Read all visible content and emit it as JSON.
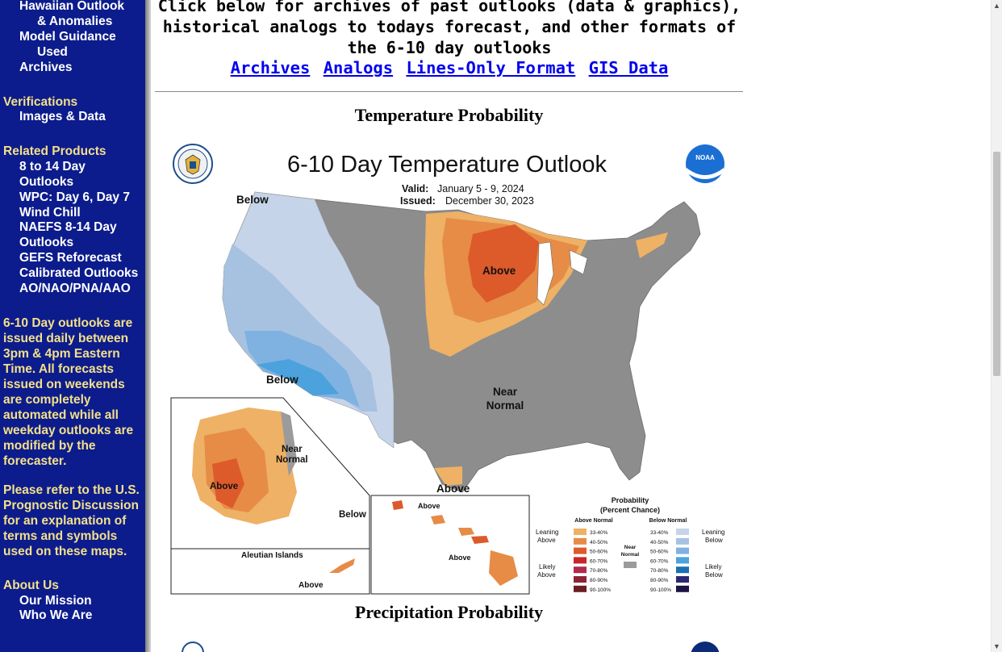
{
  "sidebar": {
    "top_items": [
      {
        "label": "Hawaiian Outlook"
      },
      {
        "label": "& Anomalies"
      },
      {
        "label": "Model Guidance"
      },
      {
        "label": "Used"
      },
      {
        "label": "Archives"
      }
    ],
    "verifications": {
      "heading": "Verifications",
      "items": [
        "Images & Data"
      ]
    },
    "related": {
      "heading": "Related Products",
      "items": [
        "8 to 14 Day",
        "Outlooks",
        "WPC: Day 6, Day 7",
        "Wind Chill",
        "NAEFS 8-14 Day",
        "Outlooks",
        "GEFS Reforecast",
        "Calibrated Outlooks",
        "AO/NAO/PNA/AAO"
      ]
    },
    "note1": "6-10 Day outlooks are issued daily between 3pm & 4pm Eastern Time. All forecasts issued on weekends are completely automated while all weekday outlooks are modified by the forecaster.",
    "note2": "Please refer to the U.S. Prognostic Discussion for an explanation of terms and symbols used on these maps.",
    "about": {
      "heading": "About Us",
      "items": [
        "Our Mission",
        "Who We Are"
      ]
    }
  },
  "header": {
    "line1": "Click below for archives of past outlooks (data & graphics),",
    "line2": "historical analogs to todays forecast, and other formats of",
    "line3": "the 6-10 day outlooks",
    "links": [
      "Archives",
      "Analogs",
      "Lines-Only Format",
      "GIS Data"
    ]
  },
  "sections": {
    "temperature_title": "Temperature Probability",
    "precip_title": "Precipitation Probability"
  },
  "map": {
    "title": "6-10 Day Temperature Outlook",
    "valid_label": "Valid:",
    "valid_value": "January 5 - 9, 2024",
    "issued_label": "Issued:",
    "issued_value": "December 30, 2023",
    "noaa_logo": "NOAA",
    "labels": {
      "below_nw": "Below",
      "above_gl": "Above",
      "below_sw": "Below",
      "near1": "Near",
      "near2": "Normal",
      "above_tx": "Above",
      "ak_near1": "Near",
      "ak_near2": "Normal",
      "ak_above": "Above",
      "ak_below": "Below",
      "aleutian": "Aleutian Islands",
      "aleutian_above": "Above",
      "hi_above1": "Above",
      "hi_above2": "Above"
    },
    "legend": {
      "title1": "Probability",
      "title2": "(Percent Chance)",
      "above_head": "Above Normal",
      "below_head": "Below Normal",
      "above": [
        "33-40%",
        "40-50%",
        "50-60%",
        "60-70%",
        "70-80%",
        "80-90%",
        "90-100%"
      ],
      "below": [
        "33-40%",
        "40-50%",
        "50-60%",
        "60-70%",
        "70-80%",
        "80-90%",
        "90-100%"
      ],
      "leaning_above": [
        "Leaning",
        "Above"
      ],
      "likely_above": [
        "Likely",
        "Above"
      ],
      "leaning_below": [
        "Leaning",
        "Below"
      ],
      "likely_below": [
        "Likely",
        "Below"
      ],
      "near_normal": [
        "Near",
        "Normal"
      ]
    },
    "colors": {
      "above": [
        "#eeb165",
        "#e68c46",
        "#dd5a2b",
        "#c8262b",
        "#b12a4d",
        "#8f2336",
        "#6b1e20"
      ],
      "below": [
        "#c6d4e9",
        "#a7c2e0",
        "#7fb1e1",
        "#4ba2dc",
        "#1c6fb5",
        "#2a2a72",
        "#1b1545"
      ],
      "near": "#9b9b9b",
      "land_gray": "#8d8d8d"
    }
  }
}
